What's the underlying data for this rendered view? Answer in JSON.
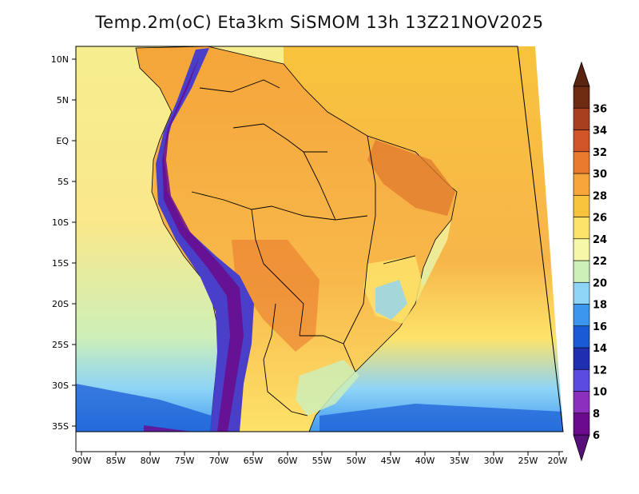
{
  "title": "Temp.2m(oC) Eta3km SiSMOM 13h 13Z21NOV2025",
  "map": {
    "lon_labels": [
      "90W",
      "85W",
      "80W",
      "75W",
      "70W",
      "65W",
      "60W",
      "55W",
      "50W",
      "45W",
      "40W",
      "35W",
      "30W",
      "25W",
      "20W"
    ],
    "lat_labels": [
      "10N",
      "5N",
      "EQ",
      "5S",
      "10S",
      "15S",
      "20S",
      "25S",
      "30S",
      "35S"
    ]
  },
  "colorbar": {
    "levels": [
      "6",
      "8",
      "10",
      "12",
      "14",
      "16",
      "18",
      "20",
      "22",
      "24",
      "26",
      "28",
      "30",
      "32",
      "34",
      "36"
    ],
    "colors": [
      "#6b0a8c",
      "#8c2fbf",
      "#5a4ce0",
      "#1f2fb0",
      "#1a5ad6",
      "#3c96ee",
      "#8ed4f7",
      "#cdefb8",
      "#f6f7a8",
      "#fde36a",
      "#f8c33c",
      "#f5a53a",
      "#ea7a2e",
      "#d2552a",
      "#a8401f",
      "#6f2a12"
    ],
    "low_color": "#58117a",
    "high_color": "#5b2410"
  },
  "palette": {
    "ocean_cool": "#9fd9f2",
    "ocean_mid": "#b5e0a9",
    "ocean_warm": "#f9e98d",
    "atlantic": "#f7b64a",
    "land": "#f3a341",
    "andes": "#3a2ba6"
  }
}
